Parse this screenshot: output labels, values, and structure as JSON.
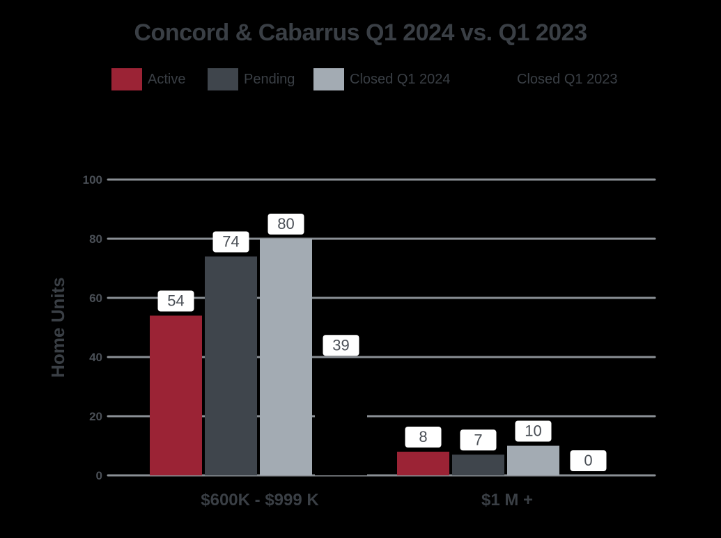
{
  "chart_data": {
    "type": "bar",
    "title": "Concord & Cabarrus Q1 2024 vs. Q1 2023",
    "ylabel": "Home Units",
    "xlabel": "",
    "ylim": [
      0,
      100
    ],
    "yticks": [
      0,
      20,
      40,
      60,
      80,
      100
    ],
    "grid": true,
    "legend_position": "top",
    "categories": [
      "$600K - $999 K",
      "$1 M +"
    ],
    "series": [
      {
        "name": "Active",
        "color": "#9b2335",
        "values": [
          54,
          8
        ]
      },
      {
        "name": "Pending",
        "color": "#3f454c",
        "values": [
          74,
          7
        ]
      },
      {
        "name": "Closed Q1 2024",
        "color": "#a3abb3",
        "values": [
          80,
          10
        ]
      },
      {
        "name": "Closed Q1 2023",
        "color": "#000000",
        "values": [
          39,
          0
        ]
      }
    ]
  }
}
